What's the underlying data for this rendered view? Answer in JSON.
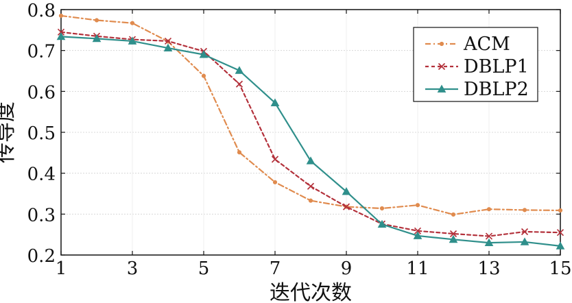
{
  "chart_data": {
    "type": "line",
    "title": "",
    "xlabel": "迭代次数",
    "ylabel": "传导度",
    "x": [
      1,
      2,
      3,
      4,
      5,
      6,
      7,
      8,
      9,
      10,
      11,
      12,
      13,
      14,
      15
    ],
    "x_ticks": [
      1,
      3,
      5,
      7,
      9,
      11,
      13,
      15
    ],
    "y_ticks": [
      0.2,
      0.3,
      0.4,
      0.5,
      0.6,
      0.7,
      0.8
    ],
    "xlim": [
      1,
      15
    ],
    "ylim": [
      0.2,
      0.8
    ],
    "grid": true,
    "legend_position": "top-right",
    "series": [
      {
        "name": "ACM",
        "color": "#e08b4e",
        "line_style": "dash-dot",
        "marker": "dot",
        "values": [
          0.785,
          0.774,
          0.767,
          0.722,
          0.638,
          0.451,
          0.378,
          0.333,
          0.318,
          0.314,
          0.322,
          0.299,
          0.312,
          0.31,
          0.309
        ]
      },
      {
        "name": "DBLP1",
        "color": "#b3313b",
        "line_style": "dashed",
        "marker": "x",
        "values": [
          0.745,
          0.735,
          0.727,
          0.723,
          0.698,
          0.618,
          0.434,
          0.368,
          0.318,
          0.276,
          0.259,
          0.252,
          0.246,
          0.257,
          0.255
        ]
      },
      {
        "name": "DBLP2",
        "color": "#2f8f8b",
        "line_style": "solid",
        "marker": "triangle",
        "values": [
          0.734,
          0.729,
          0.723,
          0.706,
          0.69,
          0.651,
          0.572,
          0.43,
          0.355,
          0.275,
          0.247,
          0.238,
          0.23,
          0.232,
          0.222
        ]
      }
    ]
  }
}
